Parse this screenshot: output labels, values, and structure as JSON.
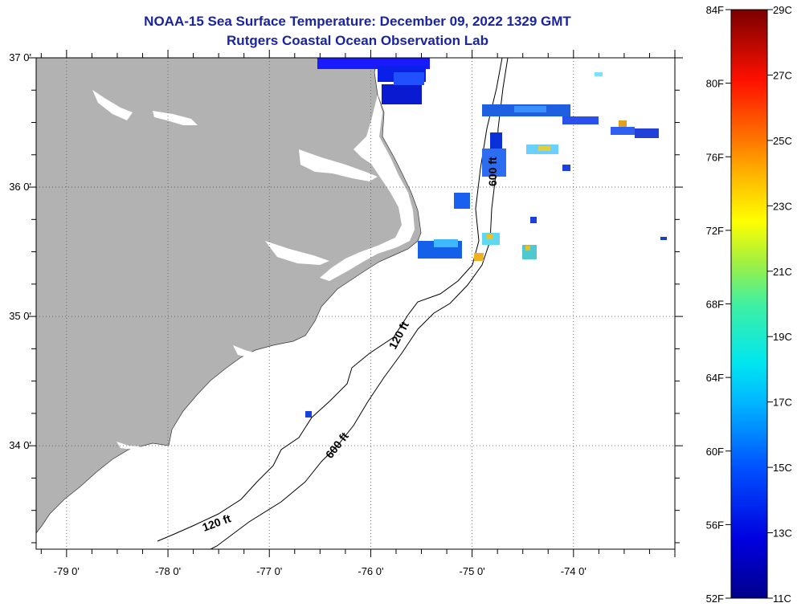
{
  "header": {
    "title": "NOAA-15 Sea Surface Temperature:  December 09, 2022 1329 GMT",
    "subtitle": "Rutgers Coastal Ocean Observation Lab"
  },
  "map": {
    "lon_range": [
      -79.3,
      -73.0
    ],
    "lat_range": [
      33.2,
      37.0
    ],
    "land_color": "#b2b2b2",
    "lon_labels": [
      "-79 0'",
      "-78 0'",
      "-77 0'",
      "-76 0'",
      "-75 0'",
      "-74 0'"
    ],
    "lat_labels": [
      "37 0'",
      "36 0'",
      "35 0'",
      "34 0'"
    ],
    "grid": true,
    "bathymetry_labels": [
      "120 ft",
      "600 ft",
      "600 ft",
      "120 ft"
    ]
  },
  "colorbar": {
    "min_c": 11,
    "max_c": 29,
    "fahrenheit_labels": [
      "84F",
      "80F",
      "76F",
      "72F",
      "68F",
      "64F",
      "60F",
      "56F",
      "52F"
    ],
    "celsius_labels": [
      "29C",
      "27C",
      "25C",
      "23C",
      "21C",
      "19C",
      "17C",
      "15C",
      "13C",
      "11C"
    ]
  }
}
